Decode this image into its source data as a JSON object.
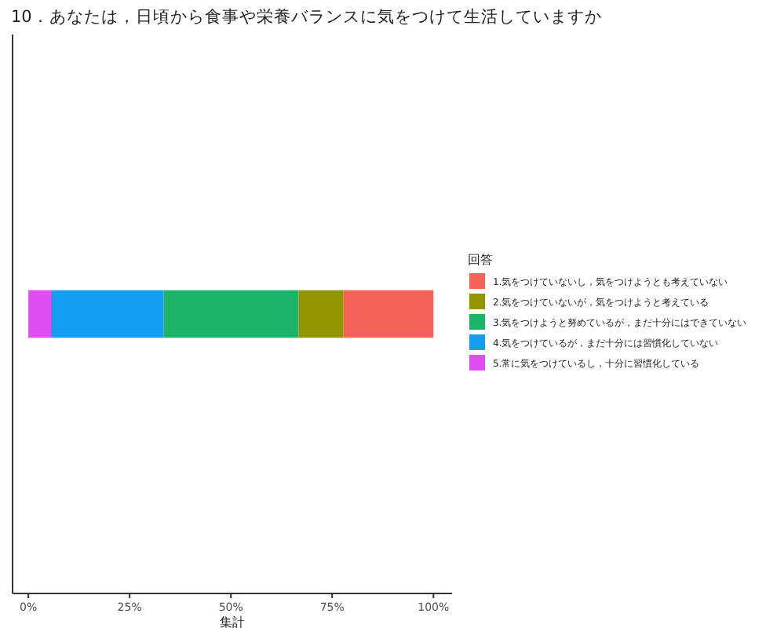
{
  "chart_data": {
    "type": "bar",
    "orientation": "horizontal",
    "stacked": true,
    "title": "10．あなたは，日頃から食事や栄養バランスに気をつけて生活していますか",
    "xlabel": "集計",
    "legend_title": "回答",
    "legend": "right",
    "categories": [
      null
    ],
    "series": [
      {
        "name": "5.常に気をつけているし，十分に習慣化している",
        "color": "#e04df0",
        "values": [
          5.6
        ]
      },
      {
        "name": "4.気をつけているが，まだ十分には習慣化していない",
        "color": "#149ef2",
        "values": [
          27.8
        ]
      },
      {
        "name": "3.気をつけようと努めているが，まだ十分にはできていない",
        "color": "#1bb46a",
        "values": [
          33.3
        ]
      },
      {
        "name": "2.気をつけていないが，気をつけようと考えている",
        "color": "#929400",
        "values": [
          11.1
        ]
      },
      {
        "name": "1.気をつけていないし，気をつけようとも考えていない",
        "color": "#f4635a",
        "values": [
          22.2
        ]
      }
    ],
    "xlim": [
      -3.9,
      104.6
    ],
    "xticks": [
      {
        "value": 0,
        "label": "0%"
      },
      {
        "value": 25,
        "label": "25%"
      },
      {
        "value": 50,
        "label": "50%"
      },
      {
        "value": 75,
        "label": "75%"
      },
      {
        "value": 100,
        "label": "100%"
      }
    ],
    "grid": false
  }
}
